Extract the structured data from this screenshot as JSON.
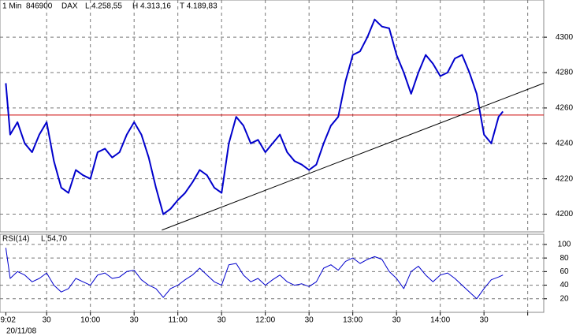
{
  "chart_data": [
    {
      "type": "line",
      "header": [
        "1 Min",
        "846900",
        "DAX",
        "L 4.258,55",
        "H 4.313,16",
        "T 4.189,83"
      ],
      "x_date": "20/11/08",
      "x": [
        "09:02",
        "09:05",
        "09:10",
        "09:15",
        "09:20",
        "09:25",
        "09:30",
        "09:35",
        "09:40",
        "09:45",
        "09:50",
        "09:55",
        "10:00",
        "10:05",
        "10:10",
        "10:15",
        "10:20",
        "10:25",
        "10:30",
        "10:35",
        "10:40",
        "10:45",
        "10:50",
        "10:55",
        "11:00",
        "11:05",
        "11:10",
        "11:15",
        "11:20",
        "11:25",
        "11:30",
        "11:35",
        "11:40",
        "11:45",
        "11:50",
        "11:55",
        "12:00",
        "12:05",
        "12:10",
        "12:15",
        "12:20",
        "12:25",
        "12:30",
        "12:35",
        "12:40",
        "12:45",
        "12:50",
        "12:55",
        "13:00",
        "13:05",
        "13:10",
        "13:15",
        "13:20",
        "13:25",
        "13:30",
        "13:35",
        "13:40",
        "13:45",
        "13:50",
        "13:55",
        "14:00",
        "14:05",
        "14:10",
        "14:15",
        "14:20",
        "14:25",
        "14:30",
        "14:35",
        "14:40",
        "14:43"
      ],
      "values": [
        4274,
        4245,
        4252,
        4240,
        4235,
        4245,
        4252,
        4230,
        4215,
        4212,
        4225,
        4222,
        4220,
        4235,
        4237,
        4232,
        4235,
        4245,
        4252,
        4245,
        4232,
        4215,
        4200,
        4203,
        4208,
        4212,
        4218,
        4225,
        4222,
        4215,
        4212,
        4240,
        4255,
        4250,
        4240,
        4242,
        4235,
        4240,
        4245,
        4235,
        4230,
        4228,
        4225,
        4228,
        4240,
        4250,
        4255,
        4275,
        4290,
        4292,
        4300,
        4310,
        4306,
        4305,
        4290,
        4280,
        4268,
        4280,
        4290,
        4285,
        4278,
        4280,
        4288,
        4290,
        4280,
        4268,
        4245,
        4240,
        4255,
        4258
      ],
      "color": "#0000cc",
      "xlim": [
        "08:58",
        "15:11"
      ],
      "xticks": [
        {
          "value": "09:02",
          "label": "09:02"
        },
        {
          "value": "09:30",
          "label": "30"
        },
        "10:00",
        {
          "value": "10:30",
          "label": "30"
        },
        "11:00",
        {
          "value": "11:30",
          "label": "30"
        },
        "12:00",
        {
          "value": "12:30",
          "label": "30"
        },
        "13:00",
        {
          "value": "13:30",
          "label": "30"
        },
        "14:00",
        {
          "value": "14:30",
          "label": "30"
        },
        {
          "value": "15:00",
          "label": null
        }
      ],
      "ylim": [
        4190,
        4321
      ],
      "yticks": [
        4200,
        4220,
        4240,
        4260,
        4280,
        4300
      ],
      "grid": true,
      "hline": {
        "value": 4256,
        "color": "#cc0000"
      },
      "trendline": {
        "x": [
          "10:49",
          "15:11"
        ],
        "values": [
          4191,
          4274
        ],
        "color": "#000000"
      }
    },
    {
      "type": "line",
      "legend": [
        "RSI(14)",
        "L 54,70"
      ],
      "x": [
        "09:02",
        "09:05",
        "09:10",
        "09:15",
        "09:20",
        "09:25",
        "09:30",
        "09:35",
        "09:40",
        "09:45",
        "09:50",
        "09:55",
        "10:00",
        "10:05",
        "10:10",
        "10:15",
        "10:20",
        "10:25",
        "10:30",
        "10:35",
        "10:40",
        "10:45",
        "10:50",
        "10:55",
        "11:00",
        "11:05",
        "11:10",
        "11:15",
        "11:20",
        "11:25",
        "11:30",
        "11:35",
        "11:40",
        "11:45",
        "11:50",
        "11:55",
        "12:00",
        "12:05",
        "12:10",
        "12:15",
        "12:20",
        "12:25",
        "12:30",
        "12:35",
        "12:40",
        "12:45",
        "12:50",
        "12:55",
        "13:00",
        "13:05",
        "13:10",
        "13:15",
        "13:20",
        "13:25",
        "13:30",
        "13:35",
        "13:40",
        "13:45",
        "13:50",
        "13:55",
        "14:00",
        "14:05",
        "14:10",
        "14:15",
        "14:20",
        "14:25",
        "14:30",
        "14:35",
        "14:40",
        "14:43"
      ],
      "values": [
        95,
        50,
        60,
        55,
        45,
        50,
        58,
        40,
        30,
        35,
        50,
        45,
        40,
        55,
        58,
        50,
        52,
        60,
        62,
        48,
        40,
        35,
        22,
        35,
        40,
        48,
        55,
        65,
        55,
        45,
        40,
        70,
        72,
        55,
        45,
        50,
        40,
        48,
        55,
        45,
        40,
        42,
        38,
        45,
        65,
        70,
        62,
        75,
        80,
        72,
        78,
        82,
        78,
        60,
        50,
        35,
        60,
        68,
        55,
        45,
        55,
        58,
        50,
        40,
        30,
        20,
        35,
        48,
        52,
        55
      ],
      "color": "#0000cc",
      "xlim": [
        "08:58",
        "15:11"
      ],
      "ylim": [
        0,
        115
      ],
      "yticks": [
        20,
        40,
        60,
        80,
        100
      ],
      "grid": true
    }
  ]
}
